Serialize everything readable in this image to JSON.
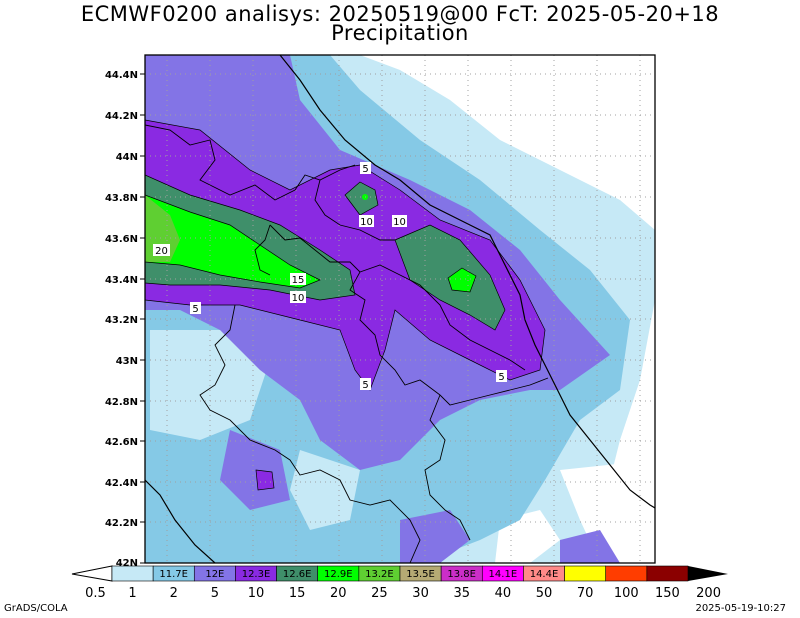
{
  "title": "ECMWF0200 analisys: 20250519@00 FcT: 2025-05-20+18",
  "subtitle": "Precipitation",
  "lat_labels": [
    "44.4N",
    "44.2N",
    "44N",
    "43.8N",
    "43.6N",
    "43.4N",
    "43.2N",
    "43N",
    "42.8N",
    "42.6N",
    "42.4N",
    "42.2N",
    "42N"
  ],
  "contour_labels": [
    "5",
    "10",
    "10",
    "20",
    "15",
    "10",
    "5",
    "5",
    "5"
  ],
  "colorbar": {
    "colors": [
      "#c6e9f6",
      "#85c9e6",
      "#8374e6",
      "#8a2ae2",
      "#3f8f6a",
      "#00ff00",
      "#5fcf32",
      "#b5aa74",
      "#cb2ec8",
      "#ff00ff",
      "#ff8a88",
      "#ffff00",
      "#ff3d00",
      "#8b0000"
    ],
    "numbers": [
      "0.5",
      "1",
      "2",
      "5",
      "10",
      "15",
      "20",
      "25",
      "30",
      "35",
      "40",
      "50",
      "70",
      "100",
      "150",
      "200"
    ],
    "inner_labels": [
      "11.7E",
      "12E",
      "12.3E",
      "12.6E",
      "12.9E",
      "13.2E",
      "13.5E",
      "13.8E",
      "14.1E",
      "14.4E"
    ]
  },
  "footer": {
    "left": "GrADS/COLA",
    "right": "2025-05-19-10:27"
  }
}
